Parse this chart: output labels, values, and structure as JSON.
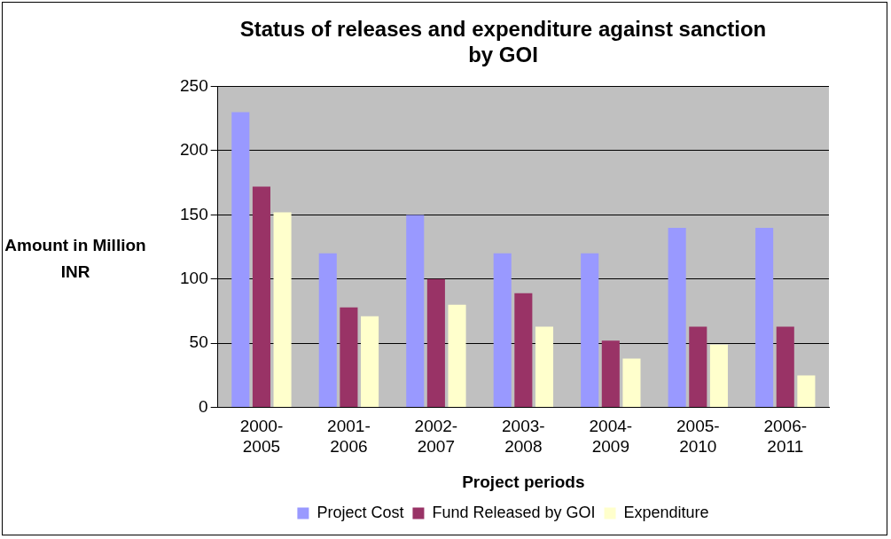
{
  "chart_data": {
    "type": "bar",
    "title": "Status of releases and expenditure against sanction by GOI",
    "xlabel": "Project periods",
    "ylabel": "Amount in Million INR",
    "categories": [
      "2000-2005",
      "2001-2006",
      "2002-2007",
      "2003-2008",
      "2004-2009",
      "2005-2010",
      "2006-2011"
    ],
    "series": [
      {
        "name": "Project Cost",
        "color": "#9999ff",
        "values": [
          230,
          120,
          150,
          120,
          120,
          140,
          140
        ]
      },
      {
        "name": "Fund Released by GOI",
        "color": "#993366",
        "values": [
          172,
          78,
          100,
          89,
          52,
          63,
          63
        ]
      },
      {
        "name": "Expenditure",
        "color": "#ffffcc",
        "values": [
          152,
          71,
          80,
          63,
          38,
          49,
          25
        ]
      }
    ],
    "ylim": [
      0,
      250
    ],
    "yticks": [
      0,
      50,
      100,
      150,
      200,
      250
    ],
    "grid": "y",
    "legend": "bottom"
  }
}
